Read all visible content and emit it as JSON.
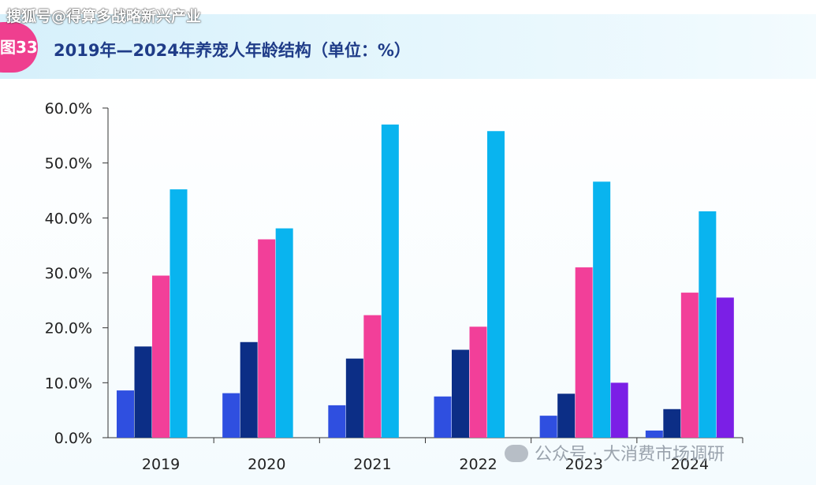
{
  "header": {
    "watermark": "搜狐号@得算多战略新兴产业",
    "badge": "图33",
    "title": "2019年—2024年养宠人年龄结构（单位：%）"
  },
  "footer": {
    "watermark": "公众号 · 大消费市场调研"
  },
  "chart_data": {
    "type": "bar",
    "title": "2019年—2024年养宠人年龄结构（单位：%）",
    "xlabel": "",
    "ylabel": "",
    "categories": [
      "2019",
      "2020",
      "2021",
      "2022",
      "2023",
      "2024"
    ],
    "ylim": [
      0,
      60
    ],
    "yticks": [
      "0.0%",
      "10.0%",
      "20.0%",
      "30.0%",
      "40.0%",
      "50.0%",
      "60.0%"
    ],
    "legend": "none",
    "series": [
      {
        "name": "series-1",
        "color": "#2f4fe0",
        "values": [
          8.6,
          8.1,
          5.9,
          7.5,
          4.0,
          1.3
        ]
      },
      {
        "name": "series-2",
        "color": "#0c2e86",
        "values": [
          16.6,
          17.4,
          14.4,
          16.0,
          8.0,
          5.2
        ]
      },
      {
        "name": "series-3",
        "color": "#f23f99",
        "values": [
          29.5,
          36.1,
          22.3,
          20.2,
          31.0,
          26.4
        ]
      },
      {
        "name": "series-4",
        "color": "#09b4ef",
        "values": [
          45.2,
          38.1,
          57.0,
          55.8,
          46.6,
          41.2
        ]
      },
      {
        "name": "series-5",
        "color": "#7b1fe6",
        "values": [
          null,
          null,
          null,
          null,
          10.0,
          25.5
        ]
      }
    ]
  }
}
